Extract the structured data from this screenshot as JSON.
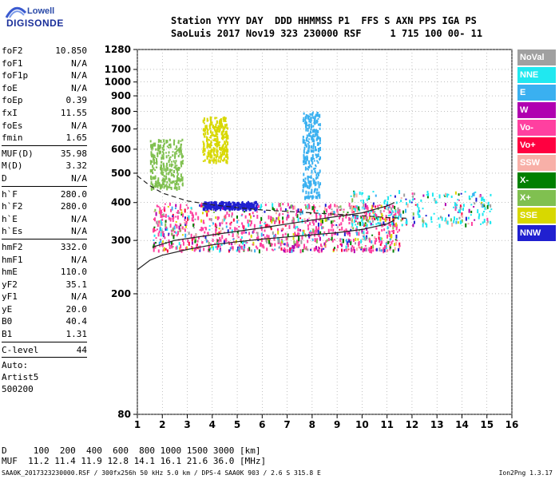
{
  "logo": {
    "line1": "Lowell",
    "line2": "DIGISONDE"
  },
  "header": {
    "line1": "Station YYYY DAY  DDD HHMMSS P1  FFS S AXN PPS IGA PS",
    "line2": "SaoLuis 2017 Nov19 323 230000 RSF     1 715 100 00- 11"
  },
  "params_group1": [
    {
      "name": "foF2",
      "value": "10.850"
    },
    {
      "name": "foF1",
      "value": "N/A"
    },
    {
      "name": "foF1p",
      "value": "N/A"
    },
    {
      "name": "foE",
      "value": "N/A"
    },
    {
      "name": "foEp",
      "value": "0.39"
    },
    {
      "name": "fxI",
      "value": "11.55"
    },
    {
      "name": "foEs",
      "value": "N/A"
    },
    {
      "name": "fmin",
      "value": "1.65"
    }
  ],
  "params_group2": [
    {
      "name": "MUF(D)",
      "value": "35.98"
    },
    {
      "name": "M(D)",
      "value": "3.32"
    },
    {
      "name": "D",
      "value": "N/A"
    }
  ],
  "params_group3": [
    {
      "name": "h`F",
      "value": "280.0"
    },
    {
      "name": "h`F2",
      "value": "280.0"
    },
    {
      "name": "h`E",
      "value": "N/A"
    },
    {
      "name": "h`Es",
      "value": "N/A"
    }
  ],
  "params_group4": [
    {
      "name": "hmF2",
      "value": "332.0"
    },
    {
      "name": "hmF1",
      "value": "N/A"
    },
    {
      "name": "hmE",
      "value": "110.0"
    },
    {
      "name": "yF2",
      "value": "35.1"
    },
    {
      "name": "yF1",
      "value": "N/A"
    },
    {
      "name": "yE",
      "value": "20.0"
    },
    {
      "name": "B0",
      "value": "40.4"
    },
    {
      "name": "B1",
      "value": "1.31"
    }
  ],
  "params_group5": [
    {
      "name": "C-level",
      "value": "44"
    }
  ],
  "auto": {
    "line1": "Auto:",
    "line2": "Artist5",
    "line3": "500200"
  },
  "footer": {
    "d_line": "D     100  200  400  600  800 1000 1500 3000 [km]",
    "muf_line": "MUF  11.2 11.4 11.9 12.8 14.1 16.1 21.6 36.0 [MHz]"
  },
  "filename": "SAA0K_2017323230000.RSF / 300fx256h 50 kHz 5.0 km / DPS-4 SAA0K 903 / 2.6 S 315.8 E",
  "version": "Ion2Png 1.3.17",
  "legend": [
    {
      "label": "NoVal",
      "color": "#a0a0a0"
    },
    {
      "label": "NNE",
      "color": "#20e8f0"
    },
    {
      "label": "E",
      "color": "#3ab0f0"
    },
    {
      "label": "W",
      "color": "#b000b0"
    },
    {
      "label": "Vo-",
      "color": "#ff40a0"
    },
    {
      "label": "Vo+",
      "color": "#ff0040"
    },
    {
      "label": "SSW",
      "color": "#f8b0a8"
    },
    {
      "label": "X-",
      "color": "#008000"
    },
    {
      "label": "X+",
      "color": "#80c050"
    },
    {
      "label": "SSE",
      "color": "#d8d800"
    },
    {
      "label": "NNW",
      "color": "#2020d0"
    }
  ],
  "chart_data": {
    "type": "scatter",
    "x_ticks": [
      1,
      2,
      3,
      4,
      5,
      6,
      7,
      8,
      9,
      10,
      11,
      12,
      13,
      14,
      15,
      16
    ],
    "y_ticks": [
      80,
      200,
      300,
      400,
      500,
      600,
      700,
      800,
      900,
      1000,
      1100,
      1280
    ],
    "xlim": [
      1,
      16
    ],
    "ylim": [
      80,
      1280
    ],
    "y_scale": "log",
    "grid": "dotted",
    "legend_position": "right",
    "echo_clusters": [
      {
        "direction": "Vo-",
        "freq_range": [
          1.6,
          11.5
        ],
        "height_range": [
          280,
          400
        ]
      },
      {
        "direction": "NNE",
        "freq_range": [
          9.5,
          15.2
        ],
        "height_range": [
          340,
          440
        ]
      },
      {
        "direction": "NNW",
        "freq_range": [
          3.6,
          5.8
        ],
        "height_range": [
          385,
          405
        ]
      },
      {
        "direction": "SSE",
        "freq_range": [
          3.6,
          4.6
        ],
        "height_range": [
          550,
          770
        ]
      },
      {
        "direction": "X+",
        "freq_range": [
          1.5,
          2.8
        ],
        "height_range": [
          450,
          650
        ]
      },
      {
        "direction": "E",
        "freq_range": [
          7.6,
          8.3
        ],
        "height_range": [
          420,
          800
        ]
      }
    ],
    "profile_curves": [
      {
        "name": "fitted trace",
        "style": "solid",
        "points": [
          [
            1.0,
            240
          ],
          [
            1.5,
            258
          ],
          [
            2,
            268
          ],
          [
            3,
            280
          ],
          [
            4,
            290
          ],
          [
            5,
            297
          ],
          [
            6,
            303
          ],
          [
            7,
            308
          ],
          [
            8,
            313
          ],
          [
            9,
            318
          ],
          [
            10,
            326
          ],
          [
            11,
            340
          ],
          [
            11.3,
            350
          ]
        ]
      },
      {
        "name": "upper trace",
        "style": "solid",
        "points": [
          [
            1.6,
            285
          ],
          [
            2.5,
            300
          ],
          [
            4,
            313
          ],
          [
            6,
            330
          ],
          [
            8,
            350
          ],
          [
            10,
            370
          ],
          [
            11,
            390
          ],
          [
            11.3,
            400
          ]
        ]
      },
      {
        "name": "dashed profile",
        "style": "dashed",
        "points": [
          [
            1.0,
            490
          ],
          [
            1.5,
            455
          ],
          [
            2,
            430
          ],
          [
            3,
            405
          ],
          [
            4,
            393
          ],
          [
            5,
            385
          ],
          [
            6,
            378
          ],
          [
            8,
            370
          ],
          [
            10,
            362
          ],
          [
            11,
            357
          ],
          [
            11.8,
            355
          ]
        ]
      }
    ]
  }
}
